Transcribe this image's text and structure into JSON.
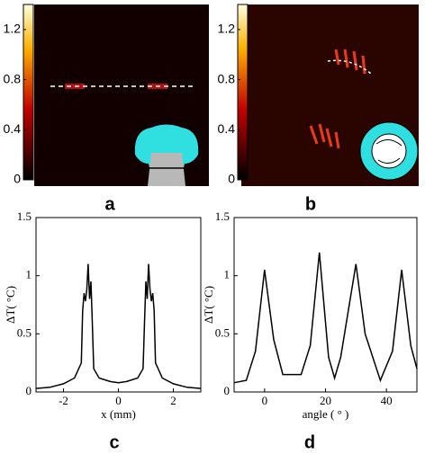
{
  "chart_data": [
    {
      "type": "heatmap",
      "label": "a",
      "ylim": [
        0,
        1.4
      ],
      "yticks": [
        0,
        0.4,
        0.8,
        1.2
      ]
    },
    {
      "type": "heatmap",
      "label": "b",
      "ylim": [
        0,
        1.4
      ],
      "yticks": [
        0,
        0.4,
        0.8,
        1.2
      ]
    },
    {
      "type": "line",
      "label": "c",
      "xlabel": "x (mm)",
      "ylabel": "ΔT( °C)",
      "color": "#000000",
      "x": [
        -3,
        -2.5,
        -2,
        -1.6,
        -1.35,
        -1.3,
        -1.25,
        -1.2,
        -1.15,
        -1.1,
        -1.05,
        -1.0,
        -0.95,
        -0.9,
        -0.7,
        -0.3,
        0,
        0.3,
        0.7,
        0.9,
        0.95,
        1.0,
        1.05,
        1.1,
        1.15,
        1.2,
        1.25,
        1.3,
        1.35,
        1.6,
        2,
        2.5,
        3
      ],
      "values": [
        0.03,
        0.04,
        0.07,
        0.12,
        0.25,
        0.7,
        0.85,
        0.78,
        0.88,
        1.1,
        0.8,
        0.95,
        0.6,
        0.2,
        0.12,
        0.09,
        0.08,
        0.09,
        0.12,
        0.2,
        0.6,
        0.95,
        0.8,
        1.1,
        0.88,
        0.78,
        0.85,
        0.7,
        0.25,
        0.12,
        0.07,
        0.04,
        0.03
      ],
      "xlim": [
        -3,
        3
      ],
      "ylim": [
        0,
        1.5
      ],
      "xticks": [
        -2,
        0,
        2
      ],
      "yticks": [
        0,
        0.5,
        1,
        1.5
      ]
    },
    {
      "type": "line",
      "label": "d",
      "xlabel": "angle ( ° )",
      "ylabel": "ΔT( °C)",
      "color": "#000000",
      "x": [
        -10,
        -6,
        -3,
        0,
        3,
        6,
        12,
        15,
        18,
        21,
        23,
        25,
        30,
        33,
        38,
        42,
        45,
        48,
        50
      ],
      "values": [
        0.08,
        0.1,
        0.35,
        1.05,
        0.45,
        0.15,
        0.15,
        0.4,
        1.2,
        0.3,
        0.12,
        0.3,
        1.1,
        0.5,
        0.1,
        0.35,
        1.05,
        0.4,
        0.2
      ],
      "xlim": [
        -10,
        50
      ],
      "ylim": [
        0,
        1.5
      ],
      "xticks": [
        0,
        20,
        40
      ],
      "yticks": [
        0,
        0.5,
        1,
        1.5
      ]
    }
  ]
}
